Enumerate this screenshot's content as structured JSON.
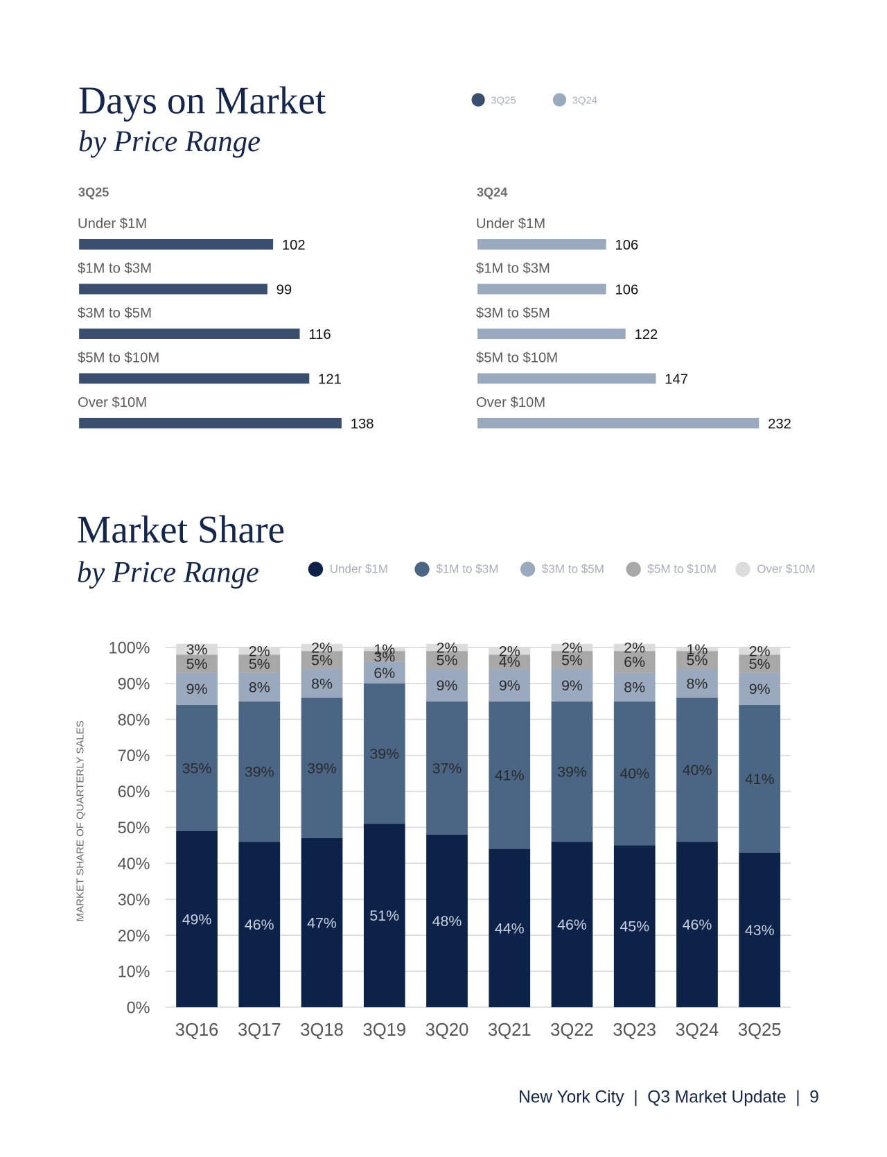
{
  "chart_data": [
    {
      "type": "hbar",
      "title": "Days on Market",
      "subtitle": "by Price Range",
      "categories": [
        "Under $1M",
        "$1M to $3M",
        "$3M to $5M",
        "$5M to $10M",
        "Over $10M"
      ],
      "series": [
        {
          "name": "3Q25",
          "color": "#3a4f6f",
          "values": [
            102,
            99,
            116,
            121,
            138
          ]
        }
      ],
      "xlim": [
        0,
        150
      ]
    },
    {
      "type": "hbar",
      "categories": [
        "Under $1M",
        "$1M to $3M",
        "$3M to $5M",
        "$5M to $10M",
        "Over $10M"
      ],
      "series": [
        {
          "name": "3Q24",
          "color": "#9aa9bd",
          "values": [
            106,
            106,
            122,
            147,
            232
          ]
        }
      ],
      "xlim": [
        0,
        240
      ]
    },
    {
      "type": "stacked-bar",
      "title": "Market Share",
      "subtitle": "by Price Range",
      "ylabel": "MARKET SHARE OF QUARTERLY SALES",
      "categories": [
        "3Q16",
        "3Q17",
        "3Q18",
        "3Q19",
        "3Q20",
        "3Q21",
        "3Q22",
        "3Q23",
        "3Q24",
        "3Q25"
      ],
      "series": [
        {
          "name": "Under $1M",
          "color": "#0c2249",
          "values": [
            49,
            46,
            47,
            51,
            48,
            44,
            46,
            45,
            46,
            43
          ],
          "value_labels": [
            "49%",
            "46%",
            "47%",
            "51%",
            "48%",
            "44%",
            "46%",
            "45%",
            "46%",
            "43%"
          ]
        },
        {
          "name": "$1M to $3M",
          "color": "#4b6585",
          "values": [
            35,
            39,
            39,
            39,
            37,
            41,
            39,
            40,
            40,
            41
          ],
          "value_labels": [
            "35%",
            "39%",
            "39%",
            "39%",
            "37%",
            "41%",
            "39%",
            "40%",
            "40%",
            "41%"
          ]
        },
        {
          "name": "$3M to $5M",
          "color": "#9aa9be",
          "values": [
            9,
            8,
            8,
            6,
            9,
            9,
            9,
            8,
            8,
            9
          ],
          "value_labels": [
            "9%",
            "8%",
            "8%",
            "6%",
            "9%",
            "9%",
            "9%",
            "8%",
            "8%",
            "9%"
          ]
        },
        {
          "name": "$5M to $10M",
          "color": "#a8a8a8",
          "values": [
            5,
            5,
            5,
            3,
            5,
            4,
            5,
            6,
            5,
            5
          ],
          "value_labels": [
            "5%",
            "5%",
            "5%",
            "3%",
            "5%",
            "4%",
            "5%",
            "6%",
            "5%",
            "5%"
          ]
        },
        {
          "name": "Over $10M",
          "color": "#dcdcdc",
          "values": [
            3,
            2,
            2,
            1,
            2,
            2,
            2,
            2,
            1,
            2
          ],
          "value_labels": [
            "3%",
            "2%",
            "2%",
            "1%",
            "2%",
            "2%",
            "2%",
            "2%",
            "1%",
            "2%"
          ]
        }
      ],
      "ylim": [
        0,
        100
      ],
      "yticks": [
        {
          "value": 0,
          "label": "0%"
        },
        {
          "value": 10,
          "label": "10%"
        },
        {
          "value": 20,
          "label": "20%"
        },
        {
          "value": 30,
          "label": "30%"
        },
        {
          "value": 40,
          "label": "40%"
        },
        {
          "value": 50,
          "label": "50%"
        },
        {
          "value": 60,
          "label": "60%"
        },
        {
          "value": 70,
          "label": "70%"
        },
        {
          "value": 80,
          "label": "80%"
        },
        {
          "value": 90,
          "label": "90%"
        },
        {
          "value": 100,
          "label": "100%"
        }
      ],
      "grid": true
    }
  ],
  "footer": "New York City  |  Q3 Market Update  |  9"
}
